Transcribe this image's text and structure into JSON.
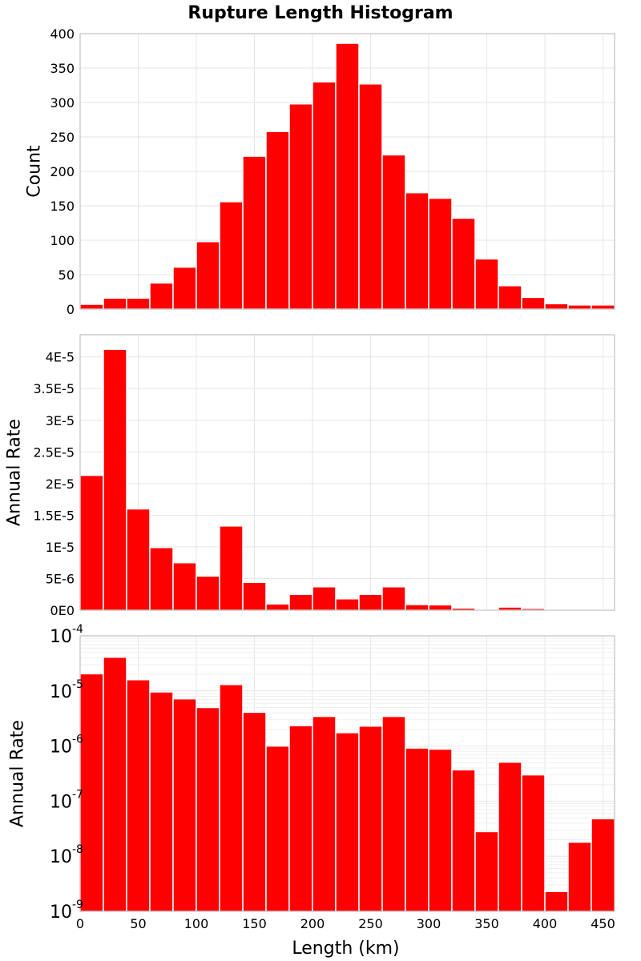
{
  "title": "Rupture Length Histogram",
  "chart_data": [
    {
      "type": "bar",
      "name": "count",
      "ylabel": "Count",
      "xlabel": "",
      "xlim": [
        0,
        460
      ],
      "ylim": [
        0,
        400
      ],
      "yscale": "linear",
      "bin_width": 20,
      "x": [
        10,
        30,
        50,
        70,
        90,
        110,
        130,
        150,
        170,
        190,
        210,
        230,
        250,
        270,
        290,
        310,
        330,
        350,
        370,
        390,
        410,
        430,
        450
      ],
      "values": [
        7,
        16,
        16,
        38,
        61,
        98,
        156,
        222,
        258,
        298,
        330,
        386,
        327,
        224,
        169,
        161,
        132,
        73,
        34,
        17,
        8,
        6,
        6
      ],
      "yticks": [
        0,
        50,
        100,
        150,
        200,
        250,
        300,
        350,
        400
      ],
      "ytick_labels": [
        "0",
        "50",
        "100",
        "150",
        "200",
        "250",
        "300",
        "350",
        "400"
      ],
      "xticks": [
        0,
        50,
        100,
        150,
        200,
        250,
        300,
        350,
        400,
        450
      ],
      "grid": true
    },
    {
      "type": "bar",
      "name": "rate-linear",
      "ylabel": "Annual Rate",
      "xlabel": "",
      "xlim": [
        0,
        460
      ],
      "ylim": [
        0,
        4.35e-05
      ],
      "yscale": "linear",
      "bin_width": 20,
      "x": [
        10,
        30,
        50,
        70,
        90,
        110,
        130,
        150,
        170,
        190,
        210,
        230,
        250,
        270,
        290,
        310,
        330,
        350,
        370,
        390,
        410,
        430,
        450
      ],
      "values": [
        2.13e-05,
        4.12e-05,
        1.6e-05,
        9.9e-06,
        7.5e-06,
        5.4e-06,
        1.33e-05,
        4.4e-06,
        1e-06,
        2.5e-06,
        3.7e-06,
        1.8e-06,
        2.5e-06,
        3.7e-06,
        9e-07,
        8.5e-07,
        3.5e-07,
        3e-08,
        5e-07,
        2.9e-07,
        2e-09,
        1.8e-08,
        5e-08
      ],
      "yticks": [
        0,
        5e-06,
        1e-05,
        1.5e-05,
        2e-05,
        2.5e-05,
        3e-05,
        3.5e-05,
        4e-05
      ],
      "ytick_labels": [
        "0E0",
        "5E-6",
        "1E-5",
        "1.5E-5",
        "2E-5",
        "2.5E-5",
        "3E-5",
        "3.5E-5",
        "4E-5"
      ],
      "xticks": [
        0,
        50,
        100,
        150,
        200,
        250,
        300,
        350,
        400,
        450
      ],
      "grid": true
    },
    {
      "type": "bar",
      "name": "rate-log",
      "ylabel": "Annual Rate",
      "xlabel": "Length (km)",
      "xlim": [
        0,
        460
      ],
      "ylim": [
        1e-09,
        0.0001
      ],
      "yscale": "log",
      "bin_width": 20,
      "x": [
        10,
        30,
        50,
        70,
        90,
        110,
        130,
        150,
        170,
        190,
        210,
        230,
        250,
        270,
        290,
        310,
        330,
        350,
        370,
        390,
        410,
        430,
        450
      ],
      "values": [
        2.05e-05,
        4.1e-05,
        1.6e-05,
        9.6e-06,
        7.2e-06,
        5e-06,
        1.31e-05,
        4.1e-06,
        1e-06,
        2.35e-06,
        3.45e-06,
        1.75e-06,
        2.3e-06,
        3.45e-06,
        9.2e-07,
        8.8e-07,
        3.7e-07,
        2.8e-08,
        5.1e-07,
        3e-07,
        2.3e-09,
        1.8e-08,
        4.8e-08
      ],
      "yticks_exp": [
        -9,
        -8,
        -7,
        -6,
        -5,
        -4
      ],
      "ytick_base": "10",
      "ytick_exp_labels": [
        "-9",
        "-8",
        "-7",
        "-6",
        "-5",
        "-4"
      ],
      "xticks": [
        0,
        50,
        100,
        150,
        200,
        250,
        300,
        350,
        400,
        450
      ],
      "xtick_labels": [
        "0",
        "50",
        "100",
        "150",
        "200",
        "250",
        "300",
        "350",
        "400",
        "450"
      ],
      "grid": true
    }
  ]
}
